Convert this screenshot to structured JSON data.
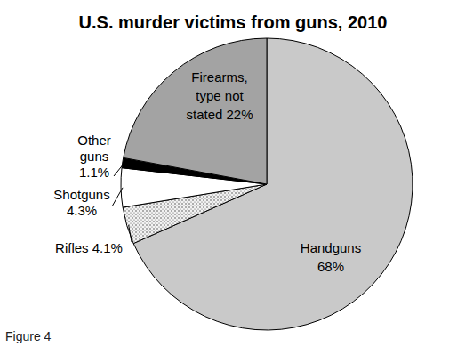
{
  "chart_data": {
    "type": "pie",
    "title": "U.S. murder victims from guns, 2010",
    "caption": "Figure 4",
    "categories": [
      "Handguns",
      "Rifles",
      "Shotguns",
      "Other guns",
      "Firearms, type not stated"
    ],
    "values": [
      68,
      4.1,
      4.3,
      1.1,
      22
    ],
    "value_labels": [
      "68%",
      "4.1%",
      "4.3%",
      "1.1%",
      "22%"
    ],
    "colors": [
      "#c9c9c9",
      "#f2f2f2",
      "#ffffff",
      "#000000",
      "#a3a3a3"
    ],
    "data_labels": true
  }
}
